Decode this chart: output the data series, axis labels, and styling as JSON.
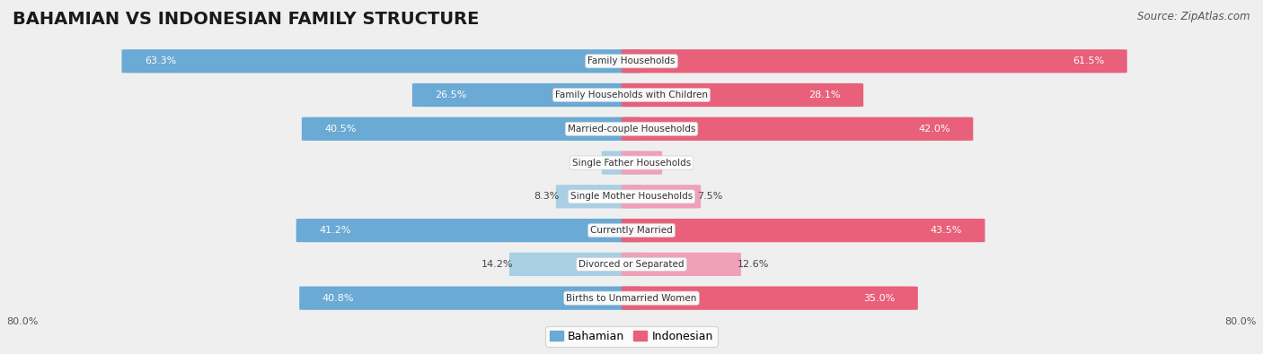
{
  "title": "BAHAMIAN VS INDONESIAN FAMILY STRUCTURE",
  "source": "Source: ZipAtlas.com",
  "categories": [
    "Family Households",
    "Family Households with Children",
    "Married-couple Households",
    "Single Father Households",
    "Single Mother Households",
    "Currently Married",
    "Divorced or Separated",
    "Births to Unmarried Women"
  ],
  "bahamian_values": [
    63.3,
    26.5,
    40.5,
    2.5,
    8.3,
    41.2,
    14.2,
    40.8
  ],
  "indonesian_values": [
    61.5,
    28.1,
    42.0,
    2.6,
    7.5,
    43.5,
    12.6,
    35.0
  ],
  "bahamian_color_strong": "#6aaad4",
  "bahamian_color_light": "#a8cfe3",
  "indonesian_color_strong": "#e8607a",
  "indonesian_color_light": "#f0a0b8",
  "axis_max": 80.0,
  "background_color": "#efefef",
  "row_bg_even": "#f5f5f5",
  "row_bg_odd": "#e8e8e8",
  "title_fontsize": 14,
  "label_fontsize": 7.5,
  "value_fontsize": 8,
  "source_fontsize": 8.5,
  "strong_threshold": 15
}
